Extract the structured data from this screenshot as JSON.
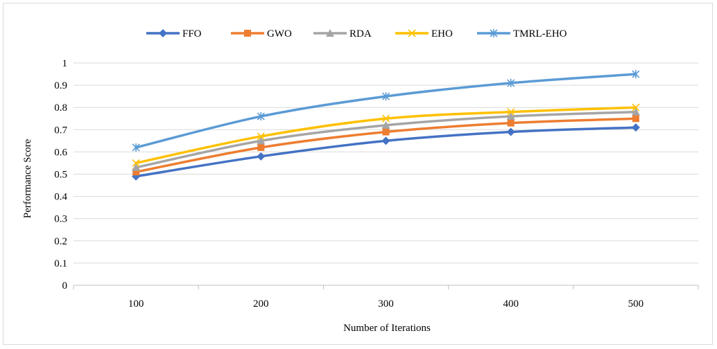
{
  "chart_data": {
    "type": "line",
    "title": "",
    "xlabel": "Number of Iterations",
    "ylabel": "Performance Score",
    "categories": [
      "100",
      "200",
      "300",
      "400",
      "500"
    ],
    "ylim": [
      0,
      1
    ],
    "yticks": [
      "0",
      "0.1",
      "0.2",
      "0.3",
      "0.4",
      "0.5",
      "0.6",
      "0.7",
      "0.8",
      "0.9",
      "1"
    ],
    "grid": true,
    "legend_position": "top",
    "series": [
      {
        "name": "FFO",
        "color": "#4472c4",
        "marker": "diamond",
        "values": [
          0.49,
          0.58,
          0.65,
          0.69,
          0.71
        ]
      },
      {
        "name": "GWO",
        "color": "#ed7d31",
        "marker": "square",
        "values": [
          0.51,
          0.62,
          0.69,
          0.73,
          0.75
        ]
      },
      {
        "name": "RDA",
        "color": "#a5a5a5",
        "marker": "triangle",
        "values": [
          0.53,
          0.65,
          0.72,
          0.76,
          0.78
        ]
      },
      {
        "name": "EHO",
        "color": "#ffc000",
        "marker": "x",
        "values": [
          0.55,
          0.67,
          0.75,
          0.78,
          0.8
        ]
      },
      {
        "name": "TMRL-EHO",
        "color": "#5b9bd5",
        "marker": "asterisk",
        "values": [
          0.62,
          0.76,
          0.85,
          0.91,
          0.95
        ]
      }
    ]
  }
}
